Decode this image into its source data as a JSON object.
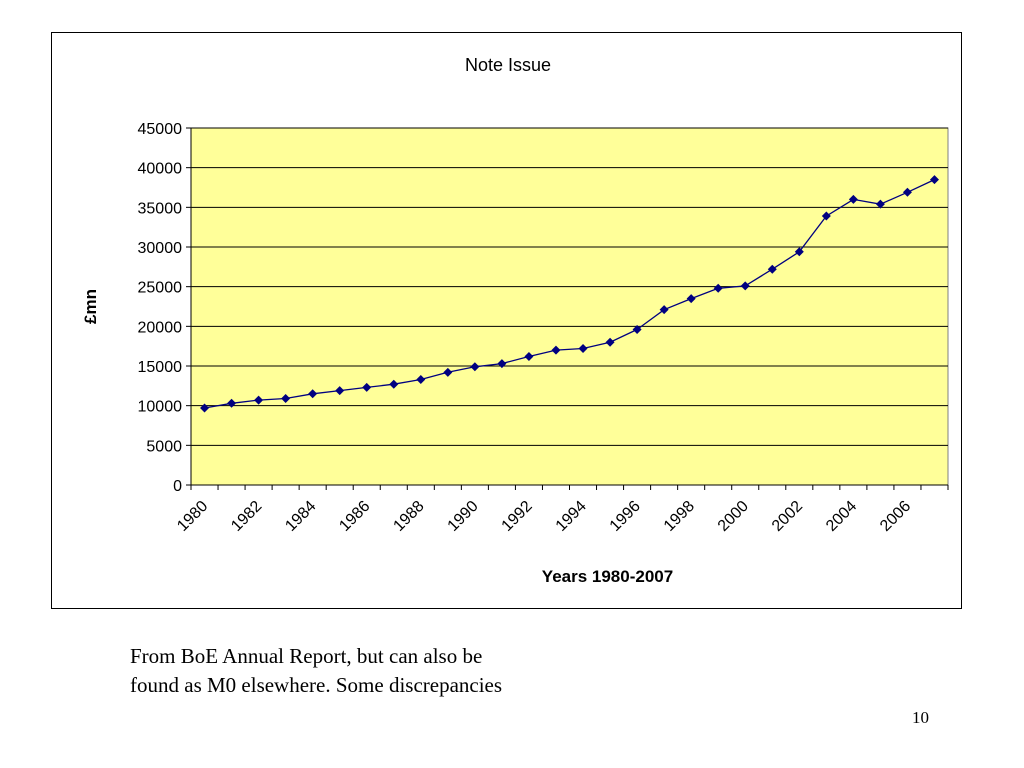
{
  "slide": {
    "caption_lines": [
      "From BoE Annual Report, but can also be",
      "found as M0 elsewhere. Some discrepancies"
    ],
    "page_number": "10"
  },
  "chart_data": {
    "type": "line",
    "title": "Note Issue",
    "xlabel": "Years 1980-2007",
    "ylabel": "£mn",
    "ylim": [
      0,
      45000
    ],
    "y_ticks": [
      0,
      5000,
      10000,
      15000,
      20000,
      25000,
      30000,
      35000,
      40000,
      45000
    ],
    "x_tick_labels": [
      "1980",
      "1982",
      "1984",
      "1986",
      "1988",
      "1990",
      "1992",
      "1994",
      "1996",
      "1998",
      "2000",
      "2002",
      "2004",
      "2006"
    ],
    "grid": true,
    "legend": "none",
    "plot_background": "#FFFF99",
    "series_color": "#000080",
    "marker": "diamond",
    "x": [
      1980,
      1981,
      1982,
      1983,
      1984,
      1985,
      1986,
      1987,
      1988,
      1989,
      1990,
      1991,
      1992,
      1993,
      1994,
      1995,
      1996,
      1997,
      1998,
      1999,
      2000,
      2001,
      2002,
      2003,
      2004,
      2005,
      2006,
      2007
    ],
    "series": [
      {
        "values": [
          9700,
          10300,
          10700,
          10900,
          11500,
          11900,
          12300,
          12700,
          13300,
          14200,
          14900,
          15300,
          16200,
          17000,
          17200,
          18000,
          19600,
          22100,
          23500,
          24800,
          25100,
          27200,
          29400,
          33900,
          36000,
          35400,
          36900,
          38500
        ]
      }
    ]
  }
}
